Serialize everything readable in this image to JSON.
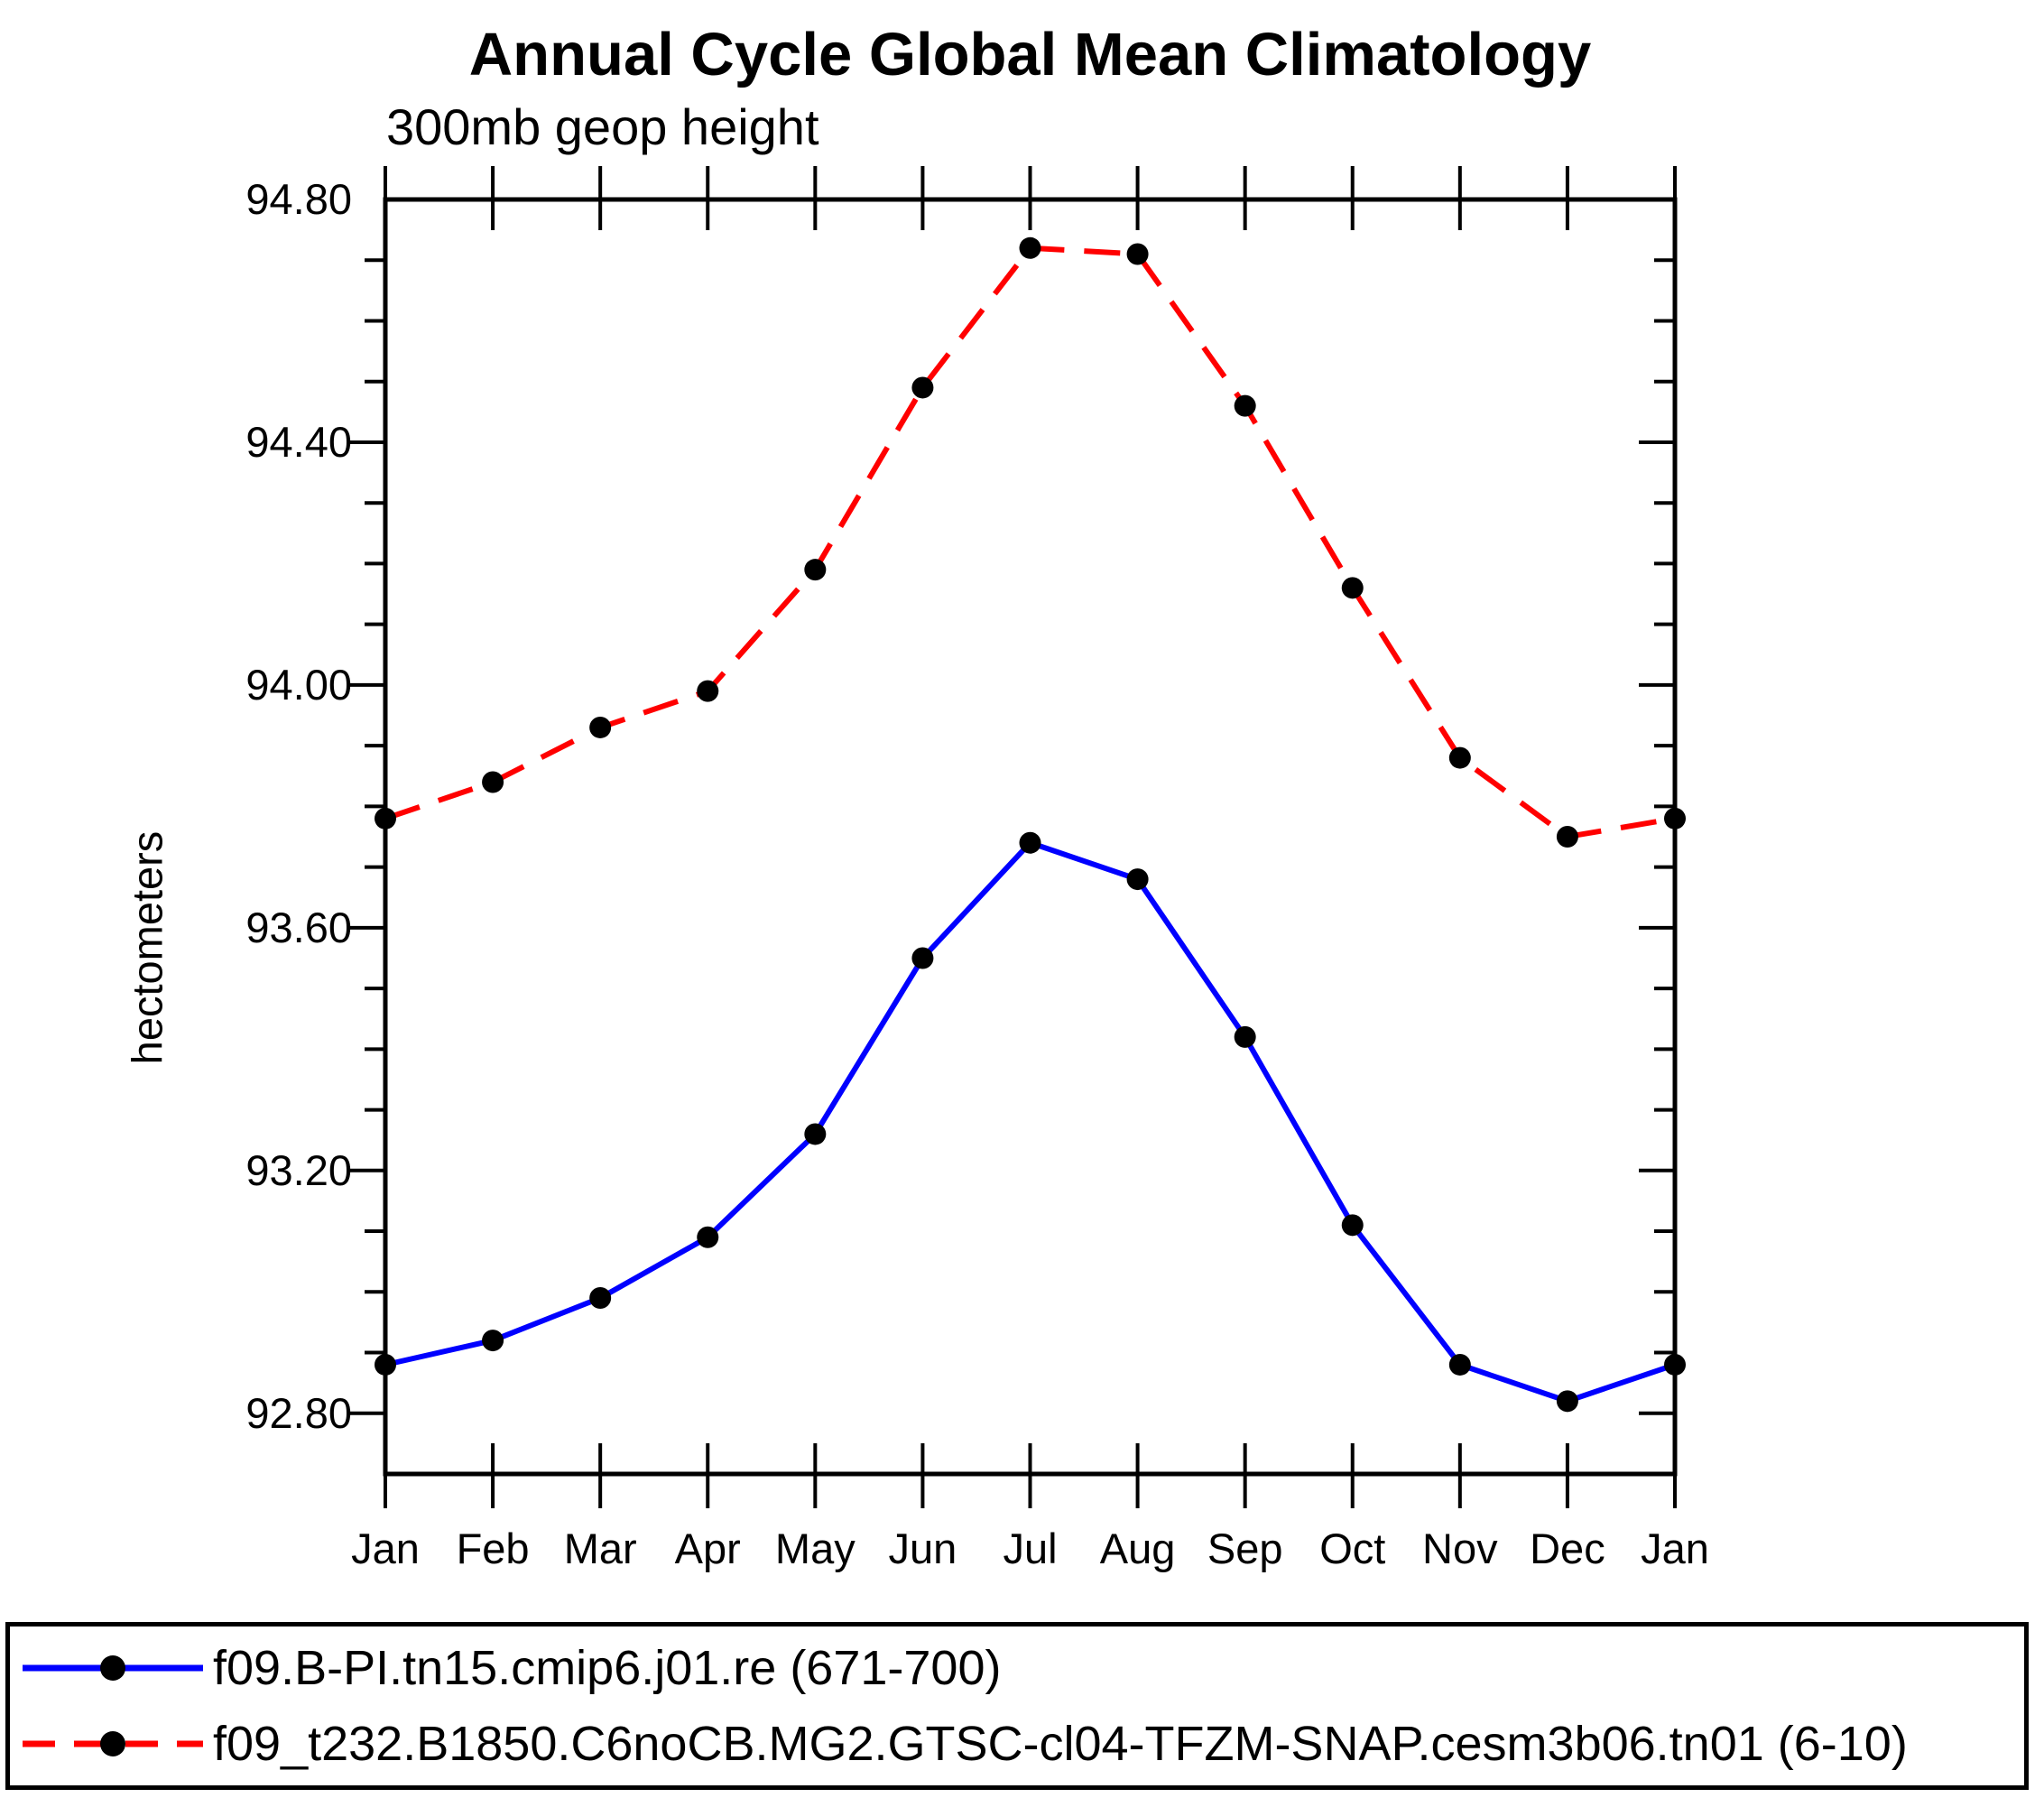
{
  "chart_data": {
    "type": "line",
    "title": "Annual Cycle Global Mean Climatology",
    "subtitle": "300mb geop height",
    "ylabel": "hectometers",
    "xlabel": "",
    "categories": [
      "Jan",
      "Feb",
      "Mar",
      "Apr",
      "May",
      "Jun",
      "Jul",
      "Aug",
      "Sep",
      "Oct",
      "Nov",
      "Dec",
      "Jan"
    ],
    "series": [
      {
        "name": "f09.B-PI.tn15.cmip6.j01.re (671-700)",
        "color": "#0000ff",
        "line_style": "solid",
        "marker": "filled-circle",
        "marker_color": "#000000",
        "values": [
          92.88,
          92.92,
          92.99,
          93.09,
          93.26,
          93.55,
          93.74,
          93.68,
          93.42,
          93.11,
          92.88,
          92.82,
          92.88
        ]
      },
      {
        "name": "f09_t232.B1850.C6noCB.MG2.GTSC-cl04-TFZM-SNAP.cesm3b06.tn01 (6-10)",
        "color": "#ff0000",
        "line_style": "dashed",
        "marker": "filled-circle",
        "marker_color": "#000000",
        "values": [
          93.78,
          93.84,
          93.93,
          93.99,
          94.19,
          94.49,
          94.72,
          94.71,
          94.46,
          94.16,
          93.88,
          93.75,
          93.78
        ]
      }
    ],
    "ylim": [
      92.7,
      94.8
    ],
    "yticks_major": [
      92.8,
      93.2,
      93.6,
      94.0,
      94.4,
      94.8
    ],
    "ytick_minor_step": 0.1,
    "ytick_label_format": "2dp",
    "grid": false,
    "legend_position": "bottom",
    "axis_color": "#000000",
    "background_color": "#ffffff"
  }
}
